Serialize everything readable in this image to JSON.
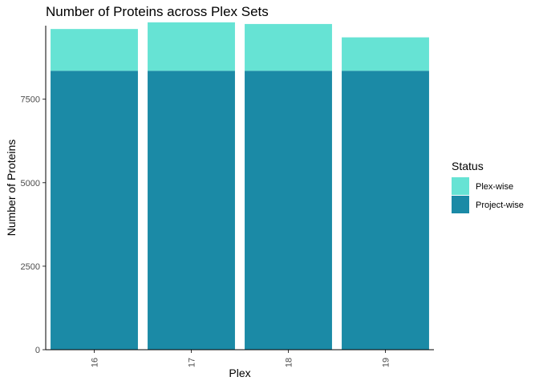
{
  "chart_data": {
    "type": "bar",
    "stacked": true,
    "title": "Number of Proteins across Plex Sets",
    "xlabel": "Plex",
    "ylabel": "Number of Proteins",
    "categories": [
      "16",
      "17",
      "18",
      "19"
    ],
    "series": [
      {
        "name": "Project-wise",
        "values": [
          8350,
          8350,
          8350,
          8350
        ],
        "color": "#1b8aa6"
      },
      {
        "name": "Plex-wise",
        "values": [
          1250,
          1450,
          1400,
          1000
        ],
        "color": "#66e3d4"
      }
    ],
    "yticks": [
      0,
      2500,
      5000,
      7500
    ],
    "ylim": [
      0,
      9700
    ],
    "grid": false,
    "legend": {
      "title": "Status",
      "position": "right",
      "entries": [
        "Plex-wise",
        "Project-wise"
      ]
    }
  }
}
